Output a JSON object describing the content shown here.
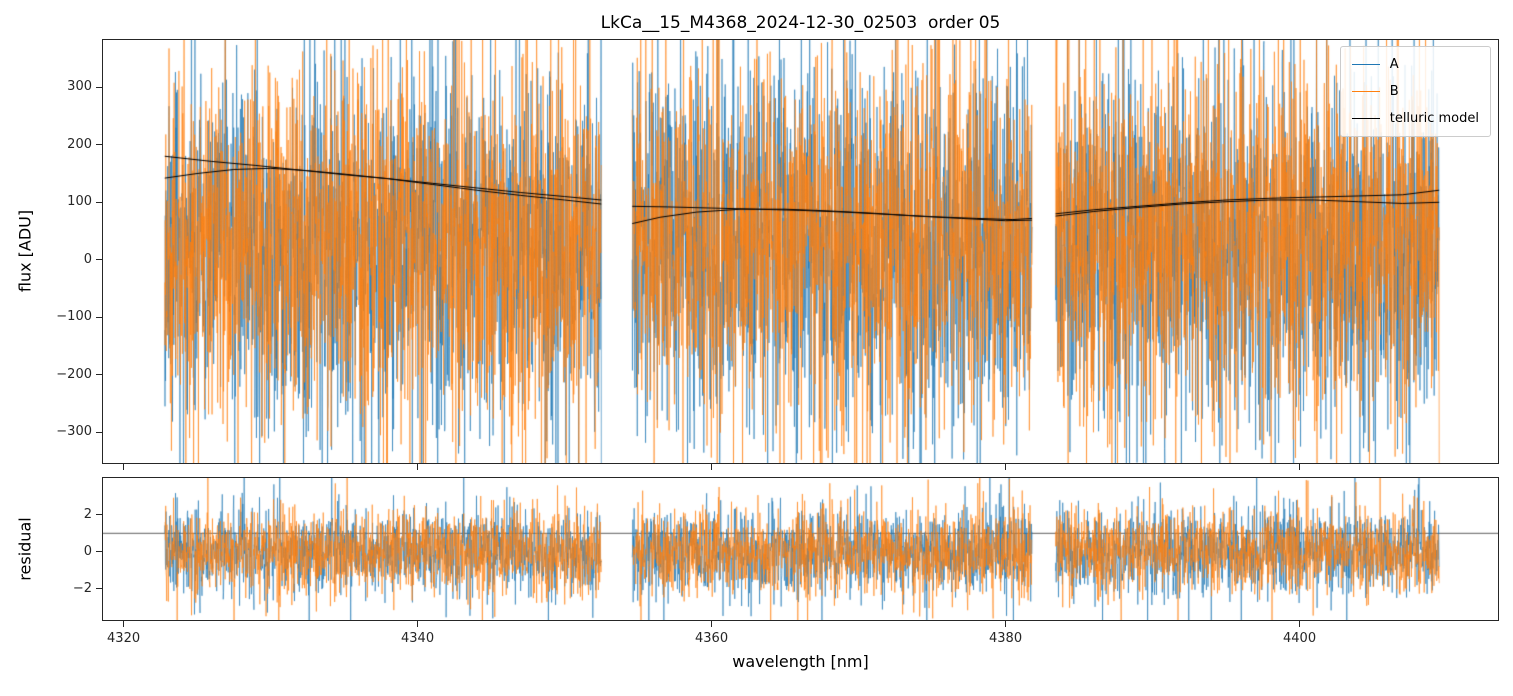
{
  "figure": {
    "title": "LkCa__15_M4368_2024-12-30_02503  order 05",
    "xlabel": "wavelength [nm]",
    "flux_ylabel": "flux [ADU]",
    "residual_ylabel": "residual",
    "background": "#ffffff"
  },
  "legend": {
    "entries": [
      {
        "label": "A",
        "color": "#1f77b4",
        "line_width": 1.5
      },
      {
        "label": "B",
        "color": "#ff7f0e",
        "line_width": 1.5
      },
      {
        "label": "telluric model",
        "color": "#000000",
        "line_width": 1
      }
    ]
  },
  "chart_data": [
    {
      "type": "line",
      "panel": "flux",
      "title": "LkCa__15_M4368_2024-12-30_02503  order 05",
      "ylabel": "flux [ADU]",
      "xlim": [
        4318.6,
        4413.5
      ],
      "ylim": [
        -353,
        382
      ],
      "yticks": [
        -300,
        -200,
        -100,
        0,
        100,
        200,
        300
      ],
      "xticks": [
        4320,
        4340,
        4360,
        4380,
        4400
      ],
      "grid": false,
      "legend_position": "upper right",
      "segments": [
        [
          4322.8,
          4352.5
        ],
        [
          4354.6,
          4381.8
        ],
        [
          4383.4,
          4409.5
        ]
      ],
      "points_per_nm": 55,
      "series": [
        {
          "name": "A",
          "color": "#1f77b4",
          "noise_mean": 20,
          "noise_std": 150,
          "spike_prob": 0.05,
          "spike_scale": 2.2,
          "alpha": 0.88,
          "line_width": 0.7,
          "seed": 20241230
        },
        {
          "name": "B",
          "color": "#ff7f0e",
          "noise_mean": 30,
          "noise_std": 152,
          "spike_prob": 0.05,
          "spike_scale": 2.2,
          "alpha": 0.88,
          "line_width": 0.7,
          "seed": 2503
        }
      ],
      "model": {
        "name": "telluric model",
        "color": "#000000",
        "line_width": 1,
        "traces": [
          {
            "segments": [
              [
                [
                  4322.8,
                  180
                ],
                [
                  4326,
                  171
                ],
                [
                  4329,
                  164
                ],
                [
                  4332,
                  156
                ],
                [
                  4335,
                  148
                ],
                [
                  4338,
                  141
                ],
                [
                  4341,
                  133
                ],
                [
                  4344,
                  125
                ],
                [
                  4347,
                  117
                ],
                [
                  4350,
                  110
                ],
                [
                  4352.5,
                  104
                ]
              ],
              [
                [
                  4354.6,
                  93
                ],
                [
                  4357,
                  92
                ],
                [
                  4360,
                  90
                ],
                [
                  4363,
                  88
                ],
                [
                  4366,
                  86
                ],
                [
                  4369,
                  83
                ],
                [
                  4372,
                  79
                ],
                [
                  4375,
                  75
                ],
                [
                  4378,
                  72
                ],
                [
                  4380.5,
                  70
                ],
                [
                  4381.8,
                  72
                ]
              ],
              [
                [
                  4383.4,
                  80
                ],
                [
                  4386,
                  87
                ],
                [
                  4389,
                  93
                ],
                [
                  4392,
                  99
                ],
                [
                  4395,
                  104
                ],
                [
                  4398,
                  107
                ],
                [
                  4401,
                  109
                ],
                [
                  4404,
                  111
                ],
                [
                  4407,
                  113
                ],
                [
                  4409.5,
                  121
                ]
              ]
            ]
          },
          {
            "segments": [
              [
                [
                  4322.8,
                  142
                ],
                [
                  4325,
                  150
                ],
                [
                  4327.5,
                  157
                ],
                [
                  4330,
                  159
                ],
                [
                  4332.5,
                  155
                ],
                [
                  4335,
                  149
                ],
                [
                  4338,
                  141
                ],
                [
                  4341,
                  131
                ],
                [
                  4344,
                  121
                ],
                [
                  4347,
                  112
                ],
                [
                  4350,
                  104
                ],
                [
                  4352.5,
                  97
                ]
              ],
              [
                [
                  4354.6,
                  63
                ],
                [
                  4356.5,
                  74
                ],
                [
                  4359,
                  83
                ],
                [
                  4362,
                  88
                ],
                [
                  4365,
                  88
                ],
                [
                  4368,
                  85
                ],
                [
                  4371,
                  81
                ],
                [
                  4374,
                  76
                ],
                [
                  4377,
                  72
                ],
                [
                  4380,
                  68
                ],
                [
                  4381.8,
                  69
                ]
              ],
              [
                [
                  4383.4,
                  76
                ],
                [
                  4386,
                  84
                ],
                [
                  4389,
                  91
                ],
                [
                  4392,
                  97
                ],
                [
                  4395,
                  101
                ],
                [
                  4398,
                  104
                ],
                [
                  4401,
                  104
                ],
                [
                  4404,
                  101
                ],
                [
                  4407,
                  98
                ],
                [
                  4409.5,
                  100
                ]
              ]
            ]
          }
        ]
      }
    },
    {
      "type": "line",
      "panel": "residual",
      "ylabel": "residual",
      "xlabel": "wavelength [nm]",
      "xlim": [
        4318.6,
        4413.5
      ],
      "ylim": [
        -3.7,
        4.0
      ],
      "yticks": [
        -2,
        0,
        2
      ],
      "xticks": [
        4320,
        4340,
        4360,
        4380,
        4400
      ],
      "grid": false,
      "reference_line_y": 1.0,
      "reference_line_color": "#4a4a4a",
      "segments": [
        [
          4322.8,
          4352.5
        ],
        [
          4354.6,
          4381.8
        ],
        [
          4383.4,
          4409.5
        ]
      ],
      "points_per_nm": 45,
      "series": [
        {
          "name": "A",
          "color": "#1f77b4",
          "noise_mean": 0,
          "noise_std": 1.15,
          "spike_prob": 0.05,
          "spike_scale": 2.0,
          "alpha": 0.88,
          "line_width": 0.7,
          "seed": 7701
        },
        {
          "name": "B",
          "color": "#ff7f0e",
          "noise_mean": 0,
          "noise_std": 1.15,
          "spike_prob": 0.05,
          "spike_scale": 2.0,
          "alpha": 0.88,
          "line_width": 0.7,
          "seed": 8802
        }
      ]
    }
  ]
}
